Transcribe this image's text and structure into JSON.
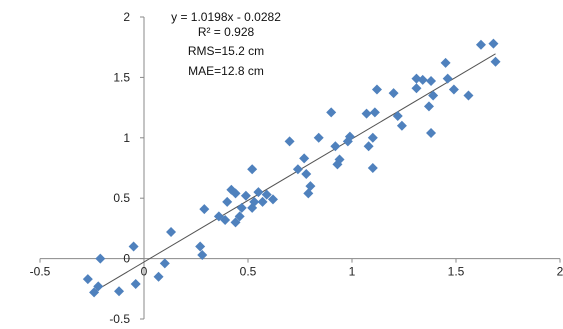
{
  "chart_data": {
    "type": "scatter",
    "title": "",
    "xlabel": "",
    "ylabel": "",
    "xlim": [
      -0.5,
      2
    ],
    "ylim": [
      -0.5,
      2
    ],
    "x_ticks": [
      "-0.5",
      "0",
      "0.5",
      "1",
      "1.5",
      "2"
    ],
    "y_ticks": [
      "-0.5",
      "0",
      "0.5",
      "1",
      "1.5",
      "2"
    ],
    "grid": false,
    "legend": "none",
    "annotations": [
      "y = 1.0198x - 0.0282",
      "R² = 0.928",
      "RMS=15.2 cm",
      "MAE=12.8 cm"
    ],
    "trendline": {
      "slope": 1.0198,
      "intercept": -0.0282,
      "x_range": [
        -0.25,
        1.69
      ],
      "color": "#555555"
    },
    "marker_color": "#4f81bd",
    "series": [
      {
        "points": [
          [
            -0.27,
            -0.17
          ],
          [
            -0.24,
            -0.28
          ],
          [
            -0.22,
            -0.23
          ],
          [
            -0.21,
            0.0
          ],
          [
            -0.12,
            -0.27
          ],
          [
            -0.05,
            0.1
          ],
          [
            -0.04,
            -0.21
          ],
          [
            0.07,
            -0.15
          ],
          [
            0.1,
            -0.04
          ],
          [
            0.13,
            0.22
          ],
          [
            0.27,
            0.1
          ],
          [
            0.28,
            0.03
          ],
          [
            0.29,
            0.41
          ],
          [
            0.36,
            0.35
          ],
          [
            0.39,
            0.32
          ],
          [
            0.4,
            0.47
          ],
          [
            0.42,
            0.57
          ],
          [
            0.44,
            0.54
          ],
          [
            0.44,
            0.3
          ],
          [
            0.46,
            0.35
          ],
          [
            0.47,
            0.42
          ],
          [
            0.49,
            0.52
          ],
          [
            0.52,
            0.42
          ],
          [
            0.52,
            0.74
          ],
          [
            0.53,
            0.47
          ],
          [
            0.55,
            0.55
          ],
          [
            0.57,
            0.47
          ],
          [
            0.59,
            0.53
          ],
          [
            0.62,
            0.49
          ],
          [
            0.7,
            0.97
          ],
          [
            0.74,
            0.74
          ],
          [
            0.77,
            0.83
          ],
          [
            0.78,
            0.7
          ],
          [
            0.79,
            0.54
          ],
          [
            0.8,
            0.6
          ],
          [
            0.84,
            1.0
          ],
          [
            0.9,
            1.21
          ],
          [
            0.92,
            0.93
          ],
          [
            0.93,
            0.78
          ],
          [
            0.94,
            0.82
          ],
          [
            0.98,
            0.97
          ],
          [
            0.99,
            1.01
          ],
          [
            1.07,
            1.2
          ],
          [
            1.08,
            0.93
          ],
          [
            1.1,
            0.75
          ],
          [
            1.1,
            1.0
          ],
          [
            1.11,
            1.21
          ],
          [
            1.12,
            1.4
          ],
          [
            1.2,
            1.37
          ],
          [
            1.22,
            1.18
          ],
          [
            1.24,
            1.1
          ],
          [
            1.31,
            1.41
          ],
          [
            1.31,
            1.49
          ],
          [
            1.34,
            1.48
          ],
          [
            1.37,
            1.26
          ],
          [
            1.38,
            1.04
          ],
          [
            1.38,
            1.47
          ],
          [
            1.39,
            1.35
          ],
          [
            1.45,
            1.62
          ],
          [
            1.46,
            1.49
          ],
          [
            1.49,
            1.4
          ],
          [
            1.56,
            1.35
          ],
          [
            1.62,
            1.77
          ],
          [
            1.68,
            1.78
          ],
          [
            1.69,
            1.63
          ]
        ]
      }
    ]
  }
}
